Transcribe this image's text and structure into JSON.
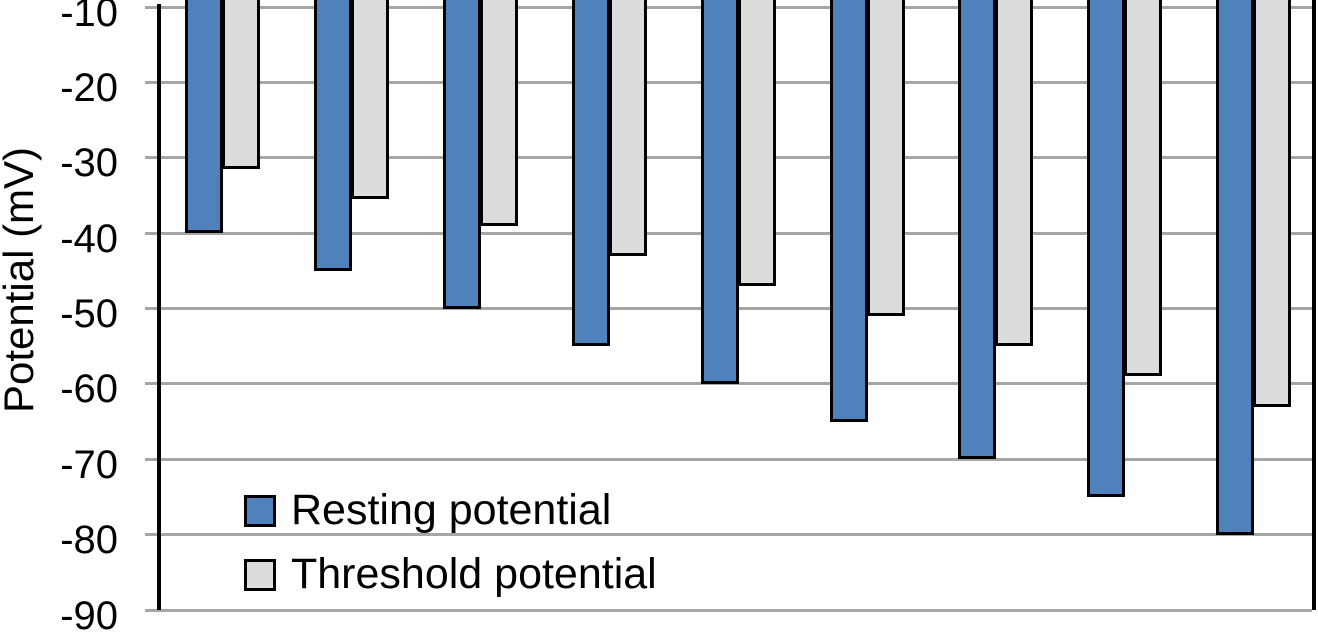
{
  "chart_data": {
    "type": "bar",
    "title": "",
    "xlabel": "",
    "ylabel": "Potential (mV)",
    "ylim": [
      -90,
      -10
    ],
    "yticks": [
      -10,
      -20,
      -30,
      -40,
      -50,
      -60,
      -70,
      -80,
      -90
    ],
    "ytick_labels": [
      "-10",
      "-20",
      "-30",
      "-40",
      "-50",
      "-60",
      "-70",
      "-80",
      "-90"
    ],
    "categories": [
      "",
      "",
      "",
      "",
      "",
      "",
      "",
      "",
      ""
    ],
    "category_axis_labels_visible": false,
    "bars_hang_from_top_edge": true,
    "grid": "horizontal",
    "legend_position": "inside-bottom-left",
    "series": [
      {
        "name": "Resting potential",
        "color": "#4F81BD",
        "values": [
          -40,
          -45,
          -50,
          -55,
          -60,
          -65,
          -70,
          -75,
          -80
        ]
      },
      {
        "name": "Threshold potential",
        "color": "#DCDCDC",
        "values": [
          -31.5,
          -35.5,
          -39,
          -43,
          -47,
          -51,
          -55,
          -59,
          -63
        ]
      }
    ]
  },
  "legend": {
    "items": [
      {
        "label": "Resting potential",
        "color": "#4F81BD"
      },
      {
        "label": "Threshold potential",
        "color": "#DCDCDC"
      }
    ]
  },
  "colors": {
    "background": "#FFFFFF",
    "bar_border": "#000000",
    "gridline": "#A6A6A6",
    "axis_line": "#000000",
    "text": "#000000"
  }
}
